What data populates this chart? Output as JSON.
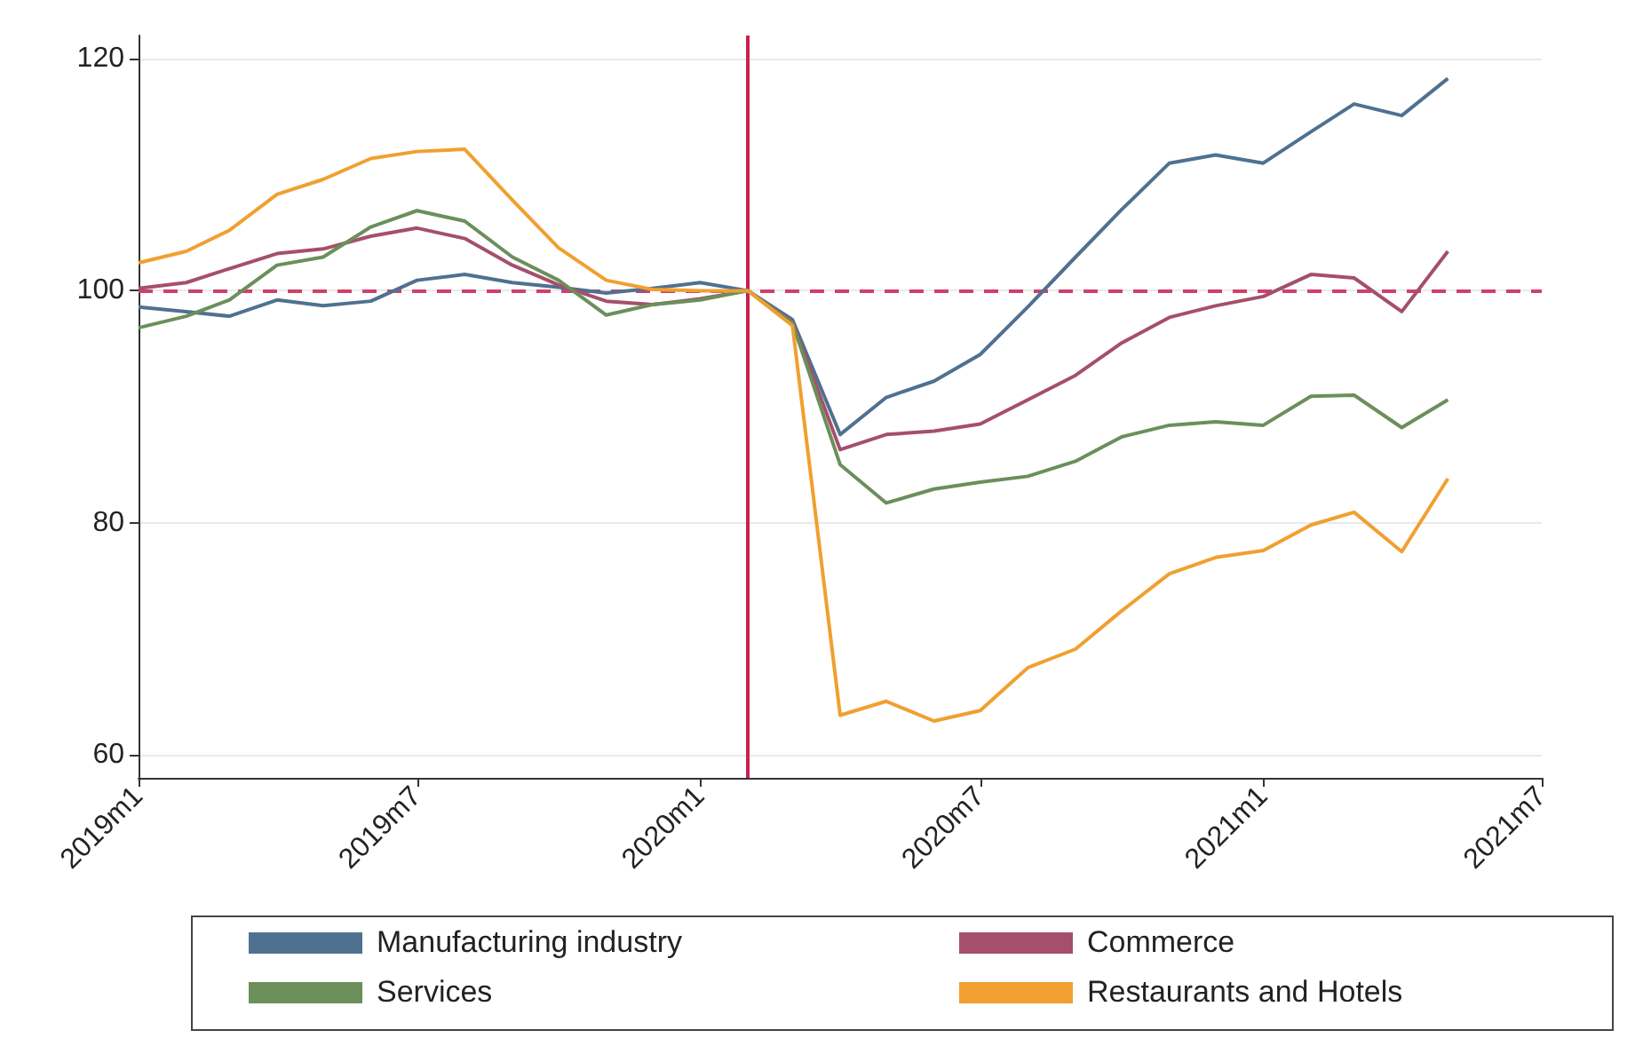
{
  "chart_data": {
    "type": "line",
    "x": [
      "2019-01",
      "2019-02",
      "2019-03",
      "2019-04",
      "2019-05",
      "2019-06",
      "2019-07",
      "2019-08",
      "2019-09",
      "2019-10",
      "2019-11",
      "2019-12",
      "2020-01",
      "2020-02",
      "2020-03",
      "2020-04",
      "2020-05",
      "2020-06",
      "2020-07",
      "2020-08",
      "2020-09",
      "2020-10",
      "2020-11",
      "2020-12",
      "2021-01",
      "2021-02",
      "2021-03",
      "2021-04",
      "2021-05"
    ],
    "series": [
      {
        "name": "Manufacturing industry",
        "color": "#4f7191",
        "values": [
          98.6,
          98.2,
          97.8,
          99.2,
          98.7,
          99.1,
          100.9,
          101.4,
          100.7,
          100.3,
          99.8,
          100.2,
          100.7,
          100,
          97.5,
          87.6,
          90.8,
          92.2,
          94.5,
          98.6,
          102.9,
          107,
          111,
          111.7,
          111,
          113.7,
          116.1,
          115.1,
          118.3
        ]
      },
      {
        "name": "Commerce",
        "color": "#a4506a",
        "values": [
          100.2,
          100.7,
          101.9,
          103.2,
          103.6,
          104.7,
          105.4,
          104.5,
          102.2,
          100.5,
          99.1,
          98.8,
          99.3,
          100,
          97.3,
          86.3,
          87.6,
          87.9,
          88.5,
          90.6,
          92.7,
          95.5,
          97.7,
          98.7,
          99.5,
          101.4,
          101.1,
          98.2,
          103.4
        ]
      },
      {
        "name": "Services",
        "color": "#6b8f5a",
        "values": [
          96.8,
          97.8,
          99.2,
          102.2,
          102.9,
          105.5,
          106.9,
          106,
          102.9,
          100.9,
          97.9,
          98.8,
          99.2,
          100,
          97.2,
          85,
          81.7,
          82.9,
          83.5,
          84,
          85.3,
          87.4,
          88.4,
          88.7,
          88.4,
          90.9,
          91,
          88.2,
          90.6
        ]
      },
      {
        "name": "Restaurants and Hotels",
        "color": "#f0a030",
        "values": [
          102.4,
          103.4,
          105.2,
          108.3,
          109.6,
          111.4,
          112,
          112.2,
          107.8,
          103.7,
          100.9,
          100.1,
          100,
          100,
          97,
          63.4,
          64.6,
          62.9,
          63.8,
          67.5,
          69.1,
          72.4,
          75.6,
          77,
          77.6,
          79.8,
          80.9,
          77.5,
          83.8
        ]
      }
    ],
    "xlim": [
      "2019-01",
      "2021-07"
    ],
    "xticks": [
      {
        "value": "2019-01",
        "label": "2019m1"
      },
      {
        "value": "2019-07",
        "label": "2019m7"
      },
      {
        "value": "2020-01",
        "label": "2020m1"
      },
      {
        "value": "2020-07",
        "label": "2020m7"
      },
      {
        "value": "2021-01",
        "label": "2021m1"
      },
      {
        "value": "2021-07",
        "label": "2021m7"
      }
    ],
    "ylim": [
      58,
      122
    ],
    "yticks": [
      60,
      80,
      100,
      120
    ],
    "grid": "y",
    "legend": "bottom",
    "ref_lines": [
      {
        "axis": "y",
        "value": 100,
        "color": "#d0406a",
        "line_style": "dashed"
      },
      {
        "axis": "x",
        "value": "2020-02",
        "color": "#c8204f",
        "line_style": "solid"
      }
    ]
  }
}
